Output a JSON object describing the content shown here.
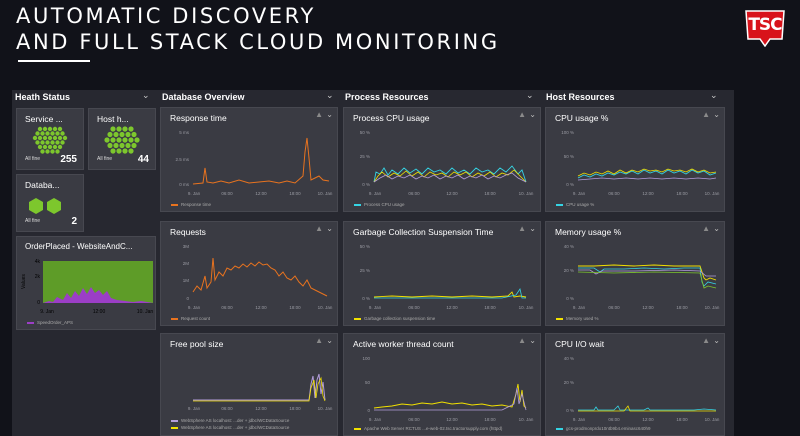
{
  "slide": {
    "headline_line1": "AUTOMATIC DISCOVERY",
    "headline_line2": "AND FULL STACK CLOUD MONITORING",
    "logo_text": "TSC",
    "logo_color": "#d8131b"
  },
  "columns": {
    "health": "Heath Status",
    "database": "Database Overview",
    "process": "Process Resources",
    "host": "Host Resources"
  },
  "health": {
    "services": {
      "title": "Service ...",
      "status": "All fine",
      "count": "255"
    },
    "hosts": {
      "title": "Host h...",
      "status": "All fine",
      "count": "44"
    },
    "databases": {
      "title": "Databa...",
      "status": "All fine",
      "count": "2"
    },
    "orderplaced": {
      "title": "OrderPlaced - WebsiteAndC...",
      "ylabel": "Values",
      "yticks": [
        "4k",
        "2k",
        "0"
      ],
      "xticks": [
        "9. Jan",
        "12:00",
        "10. Jan"
      ],
      "legend": "SpeedOrder_APS"
    },
    "honeycomb_color": "#7dc72d"
  },
  "tiles": {
    "response_time": {
      "title": "Response time",
      "yticks": [
        "5 ms",
        "2.5 ms",
        "0 ms"
      ],
      "xticks": [
        "9. Jan",
        "06:00",
        "12:00",
        "18:00",
        "10. Jan"
      ],
      "legend": "Response time"
    },
    "requests": {
      "title": "Requests",
      "yticks": [
        "3M",
        "2M",
        "1M",
        "0"
      ],
      "xticks": [
        "9. Jan",
        "06:00",
        "12:00",
        "18:00",
        "10. Jan"
      ],
      "legend": "Request count"
    },
    "free_pool": {
      "title": "Free pool size",
      "xticks": [
        "9. Jan",
        "06:00",
        "12:00",
        "18:00",
        "10. Jan"
      ],
      "legend1": "WebSphere AS localhost: ...der + jdbc/WCDataSource",
      "legend2": "WebSphere AS localhost: ...der + jdbc/WCDataSource"
    },
    "process_cpu": {
      "title": "Process CPU usage",
      "yticks": [
        "50 %",
        "25 %",
        "0 %"
      ],
      "xticks": [
        "9. Jan",
        "06:00",
        "12:00",
        "18:00",
        "10. Jan"
      ],
      "legend": "Process CPU usage"
    },
    "gc": {
      "title": "Garbage Collection Suspension Time",
      "yticks": [
        "50 %",
        "25 %",
        "0 %"
      ],
      "xticks": [
        "9. Jan",
        "06:00",
        "12:00",
        "18:00",
        "10. Jan"
      ],
      "legend": "Garbage collection suspension time"
    },
    "worker_threads": {
      "title": "Active worker thread count",
      "yticks": [
        "100",
        "50",
        "0"
      ],
      "xticks": [
        "9. Jan",
        "06:00",
        "12:00",
        "18:00",
        "10. Jan"
      ],
      "legend": "Apache Web Server RCTUS ...e-web-02.tsc.tractorsupply.com (httpd)"
    },
    "host_cpu": {
      "title": "CPU usage %",
      "yticks": [
        "100 %",
        "50 %",
        "0 %"
      ],
      "xticks": [
        "9. Jan",
        "06:00",
        "12:00",
        "18:00",
        "10. Jan"
      ],
      "legend": "CPU usage %"
    },
    "memory": {
      "title": "Memory usage %",
      "yticks": [
        "40 %",
        "20 %",
        "0 %"
      ],
      "xticks": [
        "9. Jan",
        "06:00",
        "12:00",
        "18:00",
        "10. Jan"
      ],
      "legend": "Memory used %"
    },
    "cpu_wait": {
      "title": "CPU I/O wait",
      "yticks": [
        "40 %",
        "20 %",
        "0 %"
      ],
      "xticks": [
        "9. Jan",
        "06:00",
        "12:00",
        "18:00",
        "10. Jan"
      ],
      "legend": "gcs-prodmonprdo10ntb9b4.eminasc640h9"
    }
  },
  "icons": {
    "menu": "chevron-down-icon",
    "warning": "warning-icon"
  },
  "colors": {
    "orange": "#e8731f",
    "purple": "#9b3ec6",
    "yellow": "#f2e100",
    "cyan": "#35d4e4",
    "lavender": "#b39ddb",
    "green": "#7dc72d"
  }
}
